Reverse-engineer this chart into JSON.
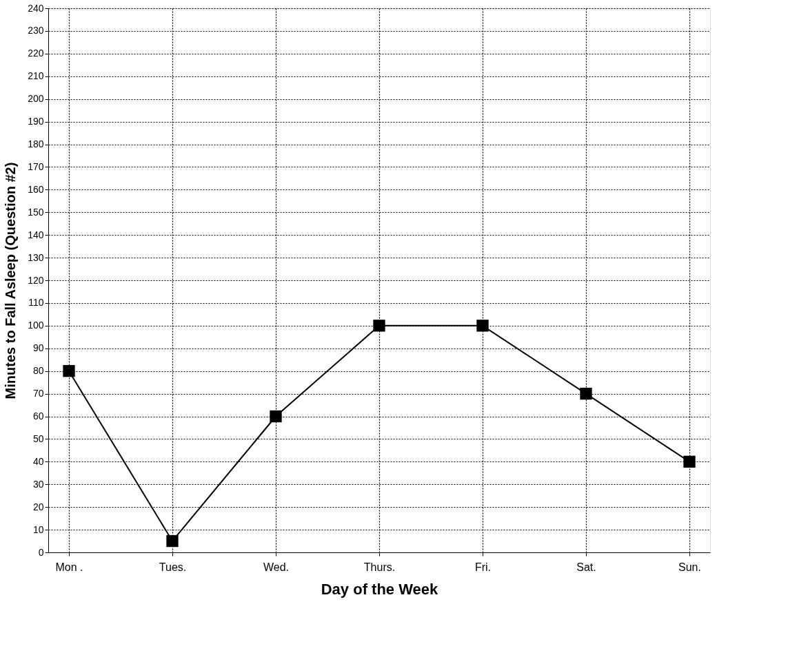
{
  "chart_data": {
    "type": "line",
    "xlabel": "Day of the Week",
    "ylabel": "Minutes to Fall Asleep (Question #2)",
    "categories": [
      "Mon .",
      "Tues.",
      "Wed.",
      "Thurs.",
      "Fri.",
      "Sat.",
      "Sun."
    ],
    "series": [
      {
        "color": "#000000",
        "values": [
          80,
          5,
          60,
          100,
          100,
          70,
          40
        ]
      }
    ],
    "ylim": [
      0,
      240
    ],
    "yticks": [
      0,
      10,
      20,
      30,
      40,
      50,
      60,
      70,
      80,
      90,
      100,
      110,
      120,
      130,
      140,
      150,
      160,
      170,
      180,
      190,
      200,
      210,
      220,
      230,
      240
    ],
    "grid": true,
    "marker": "square",
    "line_style": "solid"
  }
}
